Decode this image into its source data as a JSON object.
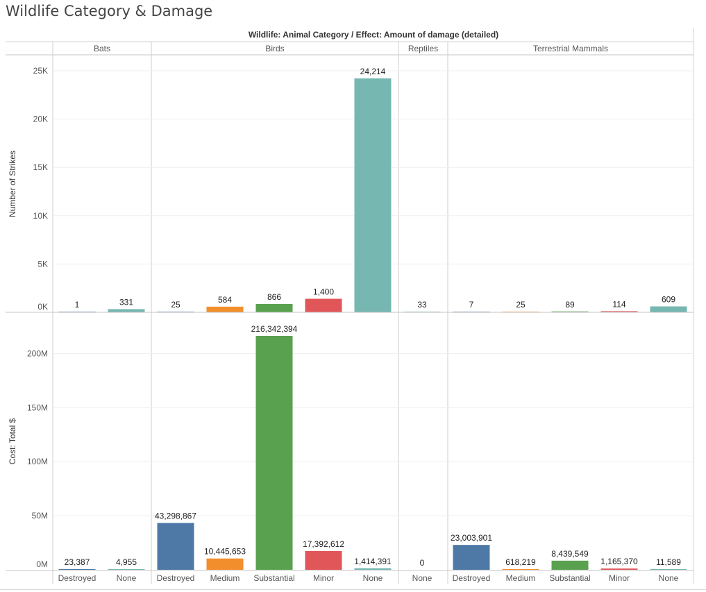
{
  "title": "Wildlife Category & Damage",
  "header_label": "Wildlife: Animal Category  /  Effect: Amount of damage (detailed)",
  "colors": {
    "Destroyed": "#4e79a7",
    "Medium": "#f28e2b",
    "Substantial": "#59a14f",
    "Minor": "#e15759",
    "None": "#76b7b2"
  },
  "chart_data": {
    "type": "bar",
    "groups": [
      {
        "name": "Bats",
        "categories": [
          "Destroyed",
          "None"
        ]
      },
      {
        "name": "Birds",
        "categories": [
          "Destroyed",
          "Medium",
          "Substantial",
          "Minor",
          "None"
        ]
      },
      {
        "name": "Reptiles",
        "categories": [
          "None"
        ]
      },
      {
        "name": "Terrestrial Mammals",
        "categories": [
          "Destroyed",
          "Medium",
          "Substantial",
          "Minor",
          "None"
        ]
      }
    ],
    "panels": [
      {
        "ylabel": "Number of Strikes",
        "ylim": [
          0,
          25000
        ],
        "ticks": [
          0,
          5000,
          10000,
          15000,
          20000,
          25000
        ],
        "tick_labels": [
          "0K",
          "5K",
          "10K",
          "15K",
          "20K",
          "25K"
        ],
        "values": [
          [
            1,
            331
          ],
          [
            25,
            584,
            866,
            1400,
            24214
          ],
          [
            33
          ],
          [
            7,
            25,
            89,
            114,
            609
          ]
        ],
        "labels": [
          [
            "1",
            "331"
          ],
          [
            "25",
            "584",
            "866",
            "1,400",
            "24,214"
          ],
          [
            "33"
          ],
          [
            "7",
            "25",
            "89",
            "114",
            "609"
          ]
        ]
      },
      {
        "ylabel": "Cost: Total $",
        "ylim": [
          0,
          216342394
        ],
        "ticks": [
          0,
          50000000,
          100000000,
          150000000,
          200000000
        ],
        "tick_labels": [
          "0M",
          "50M",
          "100M",
          "150M",
          "200M"
        ],
        "values": [
          [
            23387,
            4955
          ],
          [
            43298867,
            10445653,
            216342394,
            17392612,
            1414391
          ],
          [
            0
          ],
          [
            23003901,
            618219,
            8439549,
            1165370,
            11589
          ]
        ],
        "labels": [
          [
            "23,387",
            "4,955"
          ],
          [
            "43,298,867",
            "10,445,653",
            "216,342,394",
            "17,392,612",
            "1,414,391"
          ],
          [
            "0"
          ],
          [
            "23,003,901",
            "618,219",
            "8,439,549",
            "1,165,370",
            "11,589"
          ]
        ]
      }
    ]
  }
}
